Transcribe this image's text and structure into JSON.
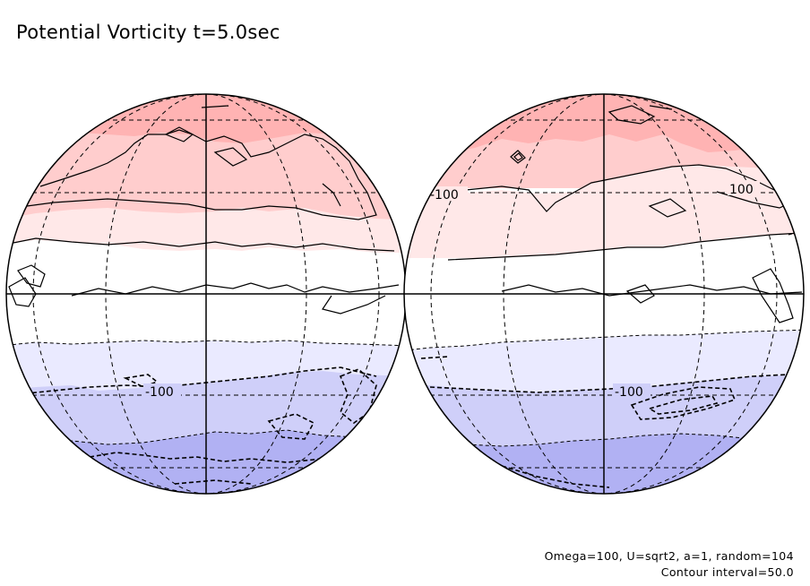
{
  "title": "Potential Vorticity t=5.0sec",
  "params_line1": "Omega=100, U=sqrt2, a=1, random=104",
  "params_line2": "Contour interval=50.0",
  "contour_labels": {
    "left_south": "-100",
    "right_north": "100",
    "right_north_west": "-100",
    "right_south": "-100"
  },
  "colors": {
    "north_high": "#ffb3b3",
    "north_mid": "#ffcdcd",
    "north_low": "#ffe8e8",
    "south_low": "#eaeaff",
    "south_mid": "#cfcff9",
    "south_high": "#b1b1f3",
    "contour": "#000000"
  }
}
